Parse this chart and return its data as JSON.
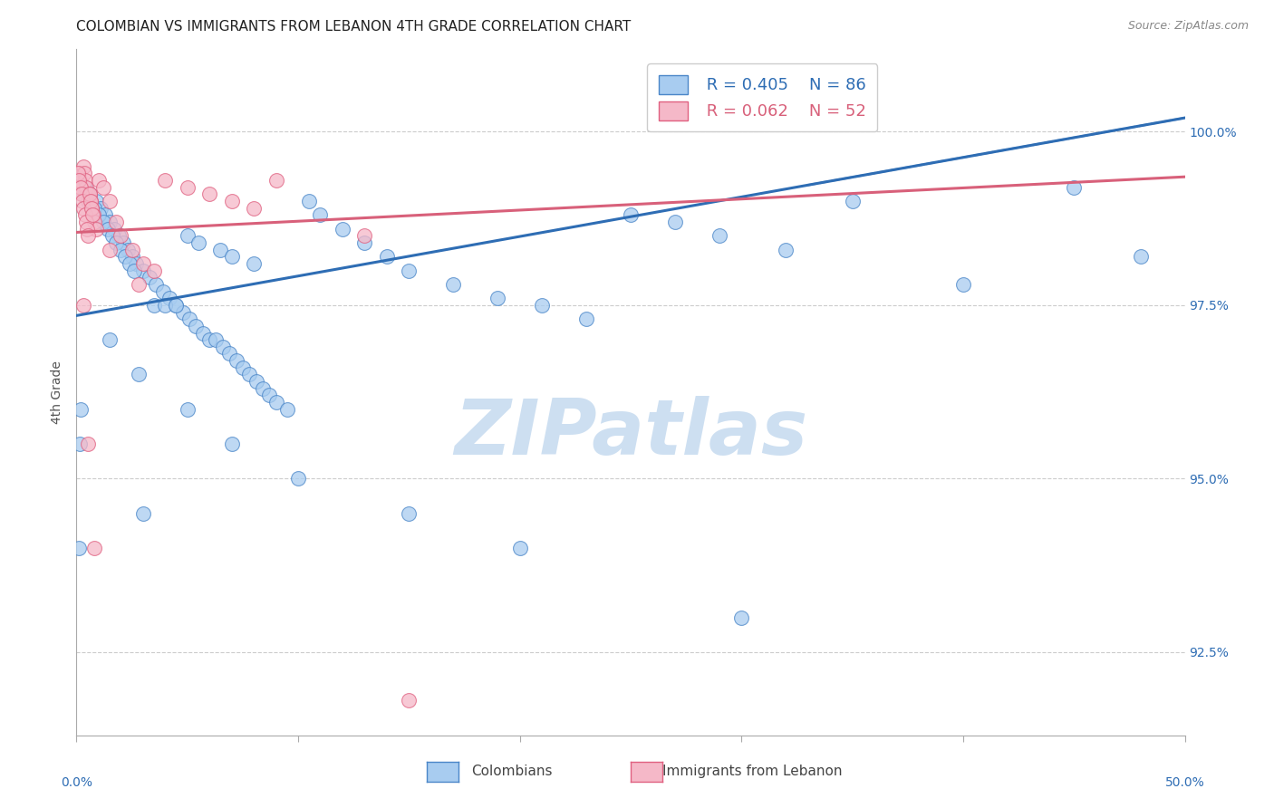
{
  "title": "COLOMBIAN VS IMMIGRANTS FROM LEBANON 4TH GRADE CORRELATION CHART",
  "source": "Source: ZipAtlas.com",
  "ylabel": "4th Grade",
  "yticks": [
    92.5,
    95.0,
    97.5,
    100.0
  ],
  "ytick_labels": [
    "92.5%",
    "95.0%",
    "97.5%",
    "100.0%"
  ],
  "xmin": 0.0,
  "xmax": 50.0,
  "ymin": 91.3,
  "ymax": 101.2,
  "legend_blue_r": "R = 0.405",
  "legend_blue_n": "N = 86",
  "legend_pink_r": "R = 0.062",
  "legend_pink_n": "N = 52",
  "legend_blue_label": "Colombians",
  "legend_pink_label": "Immigrants from Lebanon",
  "blue_fill": "#A8CCF0",
  "pink_fill": "#F5B8C8",
  "blue_edge": "#4A86C8",
  "pink_edge": "#E06080",
  "blue_line": "#2E6DB4",
  "pink_line": "#D8607A",
  "blue_trendline_y0": 97.35,
  "blue_trendline_y1": 100.2,
  "pink_trendline_y0": 98.55,
  "pink_trendline_y1": 99.35,
  "blue_dots": [
    [
      0.3,
      99.1
    ],
    [
      0.5,
      99.0
    ],
    [
      0.7,
      98.9
    ],
    [
      0.9,
      99.0
    ],
    [
      1.1,
      98.9
    ],
    [
      1.3,
      98.8
    ],
    [
      1.5,
      98.7
    ],
    [
      1.7,
      98.6
    ],
    [
      1.9,
      98.5
    ],
    [
      2.1,
      98.4
    ],
    [
      2.3,
      98.3
    ],
    [
      2.5,
      98.2
    ],
    [
      2.7,
      98.1
    ],
    [
      3.0,
      98.0
    ],
    [
      3.3,
      97.9
    ],
    [
      3.6,
      97.8
    ],
    [
      3.9,
      97.7
    ],
    [
      4.2,
      97.6
    ],
    [
      4.5,
      97.5
    ],
    [
      4.8,
      97.4
    ],
    [
      5.1,
      97.3
    ],
    [
      5.4,
      97.2
    ],
    [
      5.7,
      97.1
    ],
    [
      6.0,
      97.0
    ],
    [
      6.3,
      97.0
    ],
    [
      6.6,
      96.9
    ],
    [
      6.9,
      96.8
    ],
    [
      7.2,
      96.7
    ],
    [
      7.5,
      96.6
    ],
    [
      7.8,
      96.5
    ],
    [
      8.1,
      96.4
    ],
    [
      8.4,
      96.3
    ],
    [
      8.7,
      96.2
    ],
    [
      9.0,
      96.1
    ],
    [
      9.5,
      96.0
    ],
    [
      0.4,
      99.2
    ],
    [
      0.6,
      99.1
    ],
    [
      0.8,
      98.9
    ],
    [
      1.0,
      98.8
    ],
    [
      1.2,
      98.7
    ],
    [
      1.4,
      98.6
    ],
    [
      1.6,
      98.5
    ],
    [
      1.8,
      98.4
    ],
    [
      2.0,
      98.3
    ],
    [
      2.2,
      98.2
    ],
    [
      2.4,
      98.1
    ],
    [
      2.6,
      98.0
    ],
    [
      3.5,
      97.5
    ],
    [
      4.0,
      97.5
    ],
    [
      4.5,
      97.5
    ],
    [
      5.0,
      98.5
    ],
    [
      5.5,
      98.4
    ],
    [
      6.5,
      98.3
    ],
    [
      7.0,
      98.2
    ],
    [
      8.0,
      98.1
    ],
    [
      10.5,
      99.0
    ],
    [
      11.0,
      98.8
    ],
    [
      12.0,
      98.6
    ],
    [
      13.0,
      98.4
    ],
    [
      14.0,
      98.2
    ],
    [
      15.0,
      98.0
    ],
    [
      17.0,
      97.8
    ],
    [
      19.0,
      97.6
    ],
    [
      21.0,
      97.5
    ],
    [
      23.0,
      97.3
    ],
    [
      25.0,
      98.8
    ],
    [
      27.0,
      98.7
    ],
    [
      29.0,
      98.5
    ],
    [
      32.0,
      98.3
    ],
    [
      35.0,
      99.0
    ],
    [
      40.0,
      97.8
    ],
    [
      45.0,
      99.2
    ],
    [
      48.0,
      98.2
    ],
    [
      0.15,
      95.5
    ],
    [
      0.1,
      94.0
    ],
    [
      3.0,
      94.5
    ],
    [
      0.2,
      96.0
    ],
    [
      1.5,
      97.0
    ],
    [
      2.8,
      96.5
    ],
    [
      5.0,
      96.0
    ],
    [
      7.0,
      95.5
    ],
    [
      10.0,
      95.0
    ],
    [
      15.0,
      94.5
    ],
    [
      20.0,
      94.0
    ],
    [
      30.0,
      93.0
    ]
  ],
  "pink_dots": [
    [
      0.05,
      99.3
    ],
    [
      0.1,
      99.4
    ],
    [
      0.15,
      99.3
    ],
    [
      0.2,
      99.2
    ],
    [
      0.25,
      99.1
    ],
    [
      0.3,
      99.5
    ],
    [
      0.35,
      99.4
    ],
    [
      0.4,
      99.3
    ],
    [
      0.45,
      99.2
    ],
    [
      0.5,
      99.1
    ],
    [
      0.55,
      99.0
    ],
    [
      0.6,
      99.1
    ],
    [
      0.65,
      99.0
    ],
    [
      0.7,
      98.9
    ],
    [
      0.75,
      98.8
    ],
    [
      0.8,
      98.7
    ],
    [
      0.9,
      98.6
    ],
    [
      1.0,
      99.3
    ],
    [
      1.2,
      99.2
    ],
    [
      1.5,
      99.0
    ],
    [
      0.08,
      99.4
    ],
    [
      0.12,
      99.3
    ],
    [
      0.18,
      99.2
    ],
    [
      0.22,
      99.1
    ],
    [
      0.28,
      99.0
    ],
    [
      0.32,
      98.9
    ],
    [
      0.38,
      98.8
    ],
    [
      0.42,
      98.7
    ],
    [
      0.48,
      98.6
    ],
    [
      0.52,
      98.5
    ],
    [
      0.58,
      99.1
    ],
    [
      0.62,
      99.0
    ],
    [
      0.68,
      98.9
    ],
    [
      0.72,
      98.8
    ],
    [
      1.8,
      98.7
    ],
    [
      2.0,
      98.5
    ],
    [
      2.5,
      98.3
    ],
    [
      3.0,
      98.1
    ],
    [
      3.5,
      98.0
    ],
    [
      4.0,
      99.3
    ],
    [
      5.0,
      99.2
    ],
    [
      6.0,
      99.1
    ],
    [
      7.0,
      99.0
    ],
    [
      8.0,
      98.9
    ],
    [
      9.0,
      99.3
    ],
    [
      0.3,
      97.5
    ],
    [
      0.5,
      95.5
    ],
    [
      0.8,
      94.0
    ],
    [
      1.5,
      98.3
    ],
    [
      2.8,
      97.8
    ],
    [
      13.0,
      98.5
    ],
    [
      15.0,
      91.8
    ]
  ],
  "watermark_text": "ZIPatlas"
}
